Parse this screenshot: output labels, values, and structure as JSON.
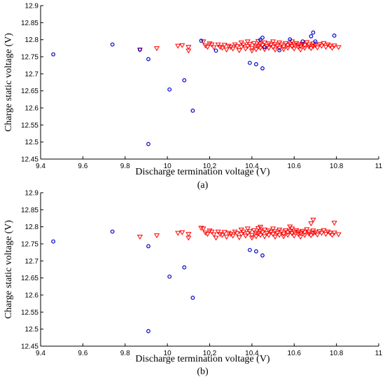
{
  "chart_data": [
    {
      "type": "scatter",
      "panel_label": "(a)",
      "xlabel": "Discharge termination voltage (V)",
      "ylabel": "Charge static voltage (V)",
      "xlim": [
        9.4,
        11
      ],
      "ylim": [
        12.45,
        12.9
      ],
      "xticks": [
        "9.4",
        "9.6",
        "9.8",
        "10",
        "10.2",
        "10.4",
        "10.6",
        "10.8",
        "11"
      ],
      "yticks": [
        "12.45",
        "12.5",
        "12.55",
        "12.6",
        "12.65",
        "12.7",
        "12.75",
        "12.8",
        "12.85",
        "12.9"
      ],
      "grid": false,
      "series": [
        {
          "marker": "circle",
          "color": "#0000cc",
          "points": [
            [
              9.46,
              12.757
            ],
            [
              9.74,
              12.786
            ],
            [
              9.87,
              12.771
            ],
            [
              9.91,
              12.743
            ],
            [
              9.91,
              12.494
            ],
            [
              10.01,
              12.654
            ],
            [
              10.08,
              12.681
            ],
            [
              10.12,
              12.592
            ],
            [
              10.16,
              12.797
            ],
            [
              10.23,
              12.768
            ],
            [
              10.39,
              12.732
            ],
            [
              10.42,
              12.728
            ],
            [
              10.44,
              12.8
            ],
            [
              10.45,
              12.806
            ],
            [
              10.45,
              12.716
            ],
            [
              10.46,
              12.778
            ],
            [
              10.53,
              12.769
            ],
            [
              10.58,
              12.801
            ],
            [
              10.64,
              12.795
            ],
            [
              10.68,
              12.81
            ],
            [
              10.69,
              12.821
            ],
            [
              10.7,
              12.795
            ],
            [
              10.79,
              12.812
            ]
          ]
        },
        {
          "marker": "triangle-down",
          "color": "#ff0000",
          "points": [
            [
              9.87,
              12.771
            ],
            [
              9.95,
              12.775
            ],
            [
              10.05,
              12.782
            ],
            [
              10.07,
              12.784
            ],
            [
              10.1,
              12.779
            ],
            [
              10.1,
              12.768
            ],
            [
              10.17,
              12.795
            ],
            [
              10.18,
              12.783
            ],
            [
              10.19,
              12.779
            ],
            [
              10.2,
              12.789
            ],
            [
              10.21,
              12.786
            ],
            [
              10.22,
              12.778
            ],
            [
              10.24,
              12.786
            ],
            [
              10.25,
              12.779
            ],
            [
              10.26,
              12.776
            ],
            [
              10.27,
              12.785
            ],
            [
              10.28,
              12.771
            ],
            [
              10.29,
              12.782
            ],
            [
              10.3,
              12.779
            ],
            [
              10.31,
              12.774
            ],
            [
              10.32,
              12.786
            ],
            [
              10.33,
              12.781
            ],
            [
              10.34,
              12.769
            ],
            [
              10.35,
              12.792
            ],
            [
              10.35,
              12.779
            ],
            [
              10.36,
              12.786
            ],
            [
              10.37,
              12.774
            ],
            [
              10.38,
              12.795
            ],
            [
              10.38,
              12.781
            ],
            [
              10.39,
              12.787
            ],
            [
              10.4,
              12.776
            ],
            [
              10.4,
              12.768
            ],
            [
              10.41,
              12.79
            ],
            [
              10.42,
              12.783
            ],
            [
              10.42,
              12.772
            ],
            [
              10.43,
              12.796
            ],
            [
              10.43,
              12.78
            ],
            [
              10.44,
              12.788
            ],
            [
              10.44,
              12.776
            ],
            [
              10.45,
              12.784
            ],
            [
              10.46,
              12.792
            ],
            [
              10.46,
              12.772
            ],
            [
              10.47,
              12.781
            ],
            [
              10.48,
              12.789
            ],
            [
              10.48,
              12.776
            ],
            [
              10.49,
              12.785
            ],
            [
              10.5,
              12.795
            ],
            [
              10.5,
              12.779
            ],
            [
              10.51,
              12.771
            ],
            [
              10.51,
              12.787
            ],
            [
              10.52,
              12.782
            ],
            [
              10.53,
              12.792
            ],
            [
              10.53,
              12.776
            ],
            [
              10.54,
              12.786
            ],
            [
              10.55,
              12.78
            ],
            [
              10.55,
              12.772
            ],
            [
              10.56,
              12.79
            ],
            [
              10.57,
              12.784
            ],
            [
              10.57,
              12.776
            ],
            [
              10.58,
              12.788
            ],
            [
              10.59,
              12.781
            ],
            [
              10.59,
              12.795
            ],
            [
              10.6,
              12.774
            ],
            [
              10.6,
              12.785
            ],
            [
              10.61,
              12.79
            ],
            [
              10.62,
              12.779
            ],
            [
              10.62,
              12.786
            ],
            [
              10.63,
              12.771
            ],
            [
              10.63,
              12.782
            ],
            [
              10.64,
              12.788
            ],
            [
              10.65,
              12.776
            ],
            [
              10.65,
              12.784
            ],
            [
              10.66,
              12.793
            ],
            [
              10.67,
              12.78
            ],
            [
              10.67,
              12.786
            ],
            [
              10.68,
              12.775
            ],
            [
              10.69,
              12.789
            ],
            [
              10.69,
              12.781
            ],
            [
              10.7,
              12.784
            ],
            [
              10.71,
              12.777
            ],
            [
              10.72,
              12.787
            ],
            [
              10.73,
              12.782
            ],
            [
              10.74,
              12.79
            ],
            [
              10.75,
              12.779
            ],
            [
              10.76,
              12.786
            ],
            [
              10.77,
              12.782
            ],
            [
              10.78,
              12.776
            ],
            [
              10.79,
              12.783
            ],
            [
              10.81,
              12.778
            ]
          ]
        }
      ]
    },
    {
      "type": "scatter",
      "panel_label": "(b)",
      "xlabel": "Discharge termination voltage (V)",
      "ylabel": "Charge static voltage (V)",
      "xlim": [
        9.4,
        11
      ],
      "ylim": [
        12.45,
        12.9
      ],
      "xticks": [
        "9.4",
        "9.6",
        "9.8",
        "10",
        "10.2",
        "10.4",
        "10.6",
        "10.8",
        "11"
      ],
      "yticks": [
        "12.45",
        "12.5",
        "12.55",
        "12.6",
        "12.65",
        "12.7",
        "12.75",
        "12.8",
        "12.85",
        "12.9"
      ],
      "grid": false,
      "series": [
        {
          "marker": "circle",
          "color": "#0000cc",
          "points": [
            [
              9.46,
              12.757
            ],
            [
              9.74,
              12.786
            ],
            [
              9.91,
              12.743
            ],
            [
              9.91,
              12.494
            ],
            [
              10.01,
              12.654
            ],
            [
              10.08,
              12.681
            ],
            [
              10.12,
              12.592
            ],
            [
              10.39,
              12.732
            ],
            [
              10.42,
              12.728
            ],
            [
              10.45,
              12.716
            ]
          ]
        },
        {
          "marker": "triangle-down",
          "color": "#ff0000",
          "points": [
            [
              9.87,
              12.771
            ],
            [
              9.95,
              12.775
            ],
            [
              10.05,
              12.782
            ],
            [
              10.07,
              12.784
            ],
            [
              10.1,
              12.779
            ],
            [
              10.1,
              12.768
            ],
            [
              10.16,
              12.797
            ],
            [
              10.17,
              12.795
            ],
            [
              10.18,
              12.783
            ],
            [
              10.19,
              12.779
            ],
            [
              10.2,
              12.789
            ],
            [
              10.21,
              12.786
            ],
            [
              10.22,
              12.778
            ],
            [
              10.23,
              12.768
            ],
            [
              10.24,
              12.786
            ],
            [
              10.25,
              12.779
            ],
            [
              10.26,
              12.776
            ],
            [
              10.27,
              12.785
            ],
            [
              10.28,
              12.771
            ],
            [
              10.29,
              12.782
            ],
            [
              10.3,
              12.779
            ],
            [
              10.31,
              12.774
            ],
            [
              10.32,
              12.786
            ],
            [
              10.33,
              12.781
            ],
            [
              10.34,
              12.769
            ],
            [
              10.35,
              12.792
            ],
            [
              10.35,
              12.779
            ],
            [
              10.36,
              12.786
            ],
            [
              10.37,
              12.774
            ],
            [
              10.38,
              12.795
            ],
            [
              10.38,
              12.781
            ],
            [
              10.39,
              12.787
            ],
            [
              10.4,
              12.776
            ],
            [
              10.4,
              12.768
            ],
            [
              10.41,
              12.79
            ],
            [
              10.42,
              12.783
            ],
            [
              10.42,
              12.772
            ],
            [
              10.43,
              12.796
            ],
            [
              10.43,
              12.78
            ],
            [
              10.44,
              12.788
            ],
            [
              10.44,
              12.776
            ],
            [
              10.44,
              12.8
            ],
            [
              10.45,
              12.784
            ],
            [
              10.46,
              12.792
            ],
            [
              10.46,
              12.772
            ],
            [
              10.47,
              12.781
            ],
            [
              10.48,
              12.789
            ],
            [
              10.48,
              12.776
            ],
            [
              10.49,
              12.785
            ],
            [
              10.5,
              12.795
            ],
            [
              10.5,
              12.779
            ],
            [
              10.51,
              12.771
            ],
            [
              10.51,
              12.787
            ],
            [
              10.52,
              12.782
            ],
            [
              10.53,
              12.792
            ],
            [
              10.53,
              12.776
            ],
            [
              10.54,
              12.786
            ],
            [
              10.55,
              12.78
            ],
            [
              10.55,
              12.772
            ],
            [
              10.56,
              12.79
            ],
            [
              10.57,
              12.784
            ],
            [
              10.57,
              12.776
            ],
            [
              10.58,
              12.801
            ],
            [
              10.58,
              12.788
            ],
            [
              10.59,
              12.781
            ],
            [
              10.59,
              12.795
            ],
            [
              10.6,
              12.774
            ],
            [
              10.6,
              12.785
            ],
            [
              10.61,
              12.79
            ],
            [
              10.62,
              12.779
            ],
            [
              10.62,
              12.786
            ],
            [
              10.63,
              12.771
            ],
            [
              10.63,
              12.782
            ],
            [
              10.64,
              12.788
            ],
            [
              10.65,
              12.776
            ],
            [
              10.65,
              12.784
            ],
            [
              10.66,
              12.793
            ],
            [
              10.67,
              12.78
            ],
            [
              10.67,
              12.786
            ],
            [
              10.68,
              12.81
            ],
            [
              10.68,
              12.775
            ],
            [
              10.69,
              12.821
            ],
            [
              10.69,
              12.789
            ],
            [
              10.69,
              12.781
            ],
            [
              10.7,
              12.784
            ],
            [
              10.71,
              12.777
            ],
            [
              10.72,
              12.787
            ],
            [
              10.73,
              12.782
            ],
            [
              10.74,
              12.79
            ],
            [
              10.75,
              12.779
            ],
            [
              10.76,
              12.786
            ],
            [
              10.77,
              12.782
            ],
            [
              10.78,
              12.776
            ],
            [
              10.79,
              12.812
            ],
            [
              10.79,
              12.783
            ],
            [
              10.81,
              12.778
            ]
          ]
        }
      ]
    }
  ]
}
